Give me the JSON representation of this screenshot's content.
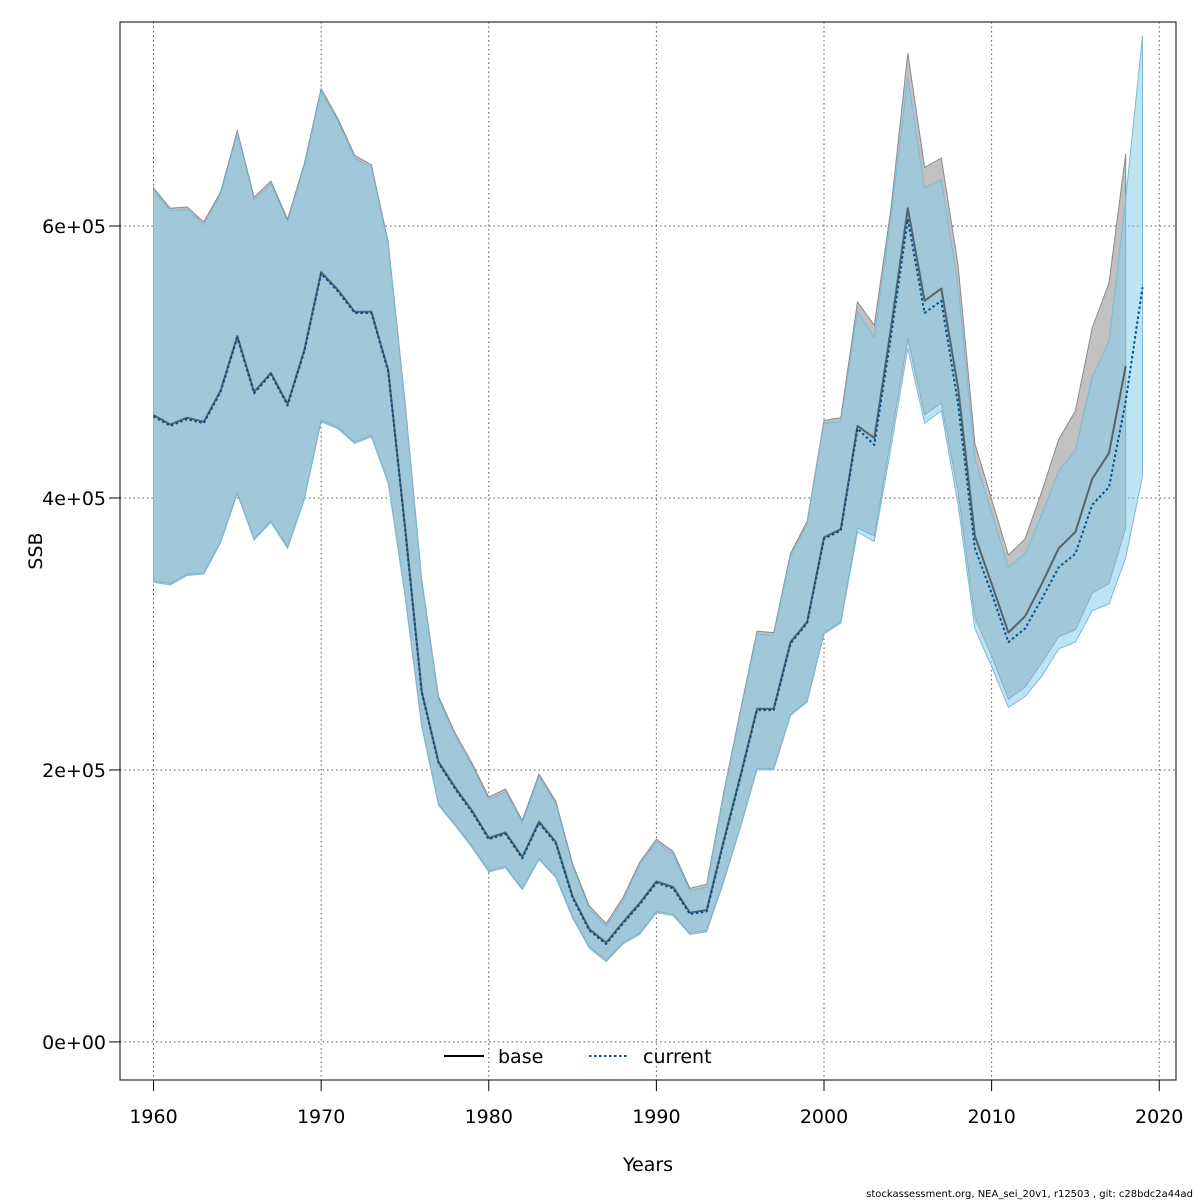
{
  "chart_data": {
    "type": "line",
    "xlabel": "Years",
    "ylabel": "SSB",
    "xlim": [
      1958,
      2021
    ],
    "ylim": [
      -28000,
      750000
    ],
    "x_ticks": [
      1960,
      1970,
      1980,
      1990,
      2000,
      2010,
      2020
    ],
    "y_ticks": [
      0,
      200000,
      400000,
      600000
    ],
    "y_tick_labels": [
      "0e+00",
      "2e+05",
      "4e+05",
      "6e+05"
    ],
    "grid": true,
    "legend_placement": "bottom",
    "footer": "stockassessment.org, NEA_sei_20v1, r12503 , git: c28bdc2a44ad",
    "colors": {
      "base_line": "#000000",
      "base_band": "#bebebe",
      "current_line": "#00508c",
      "current_band": "#87ceeb"
    },
    "series": [
      {
        "name": "base",
        "style": "solid",
        "x": [
          1960,
          1961,
          1962,
          1963,
          1964,
          1965,
          1966,
          1967,
          1968,
          1969,
          1970,
          1971,
          1972,
          1973,
          1974,
          1975,
          1976,
          1977,
          1978,
          1979,
          1980,
          1981,
          1982,
          1983,
          1984,
          1985,
          1986,
          1987,
          1988,
          1989,
          1990,
          1991,
          1992,
          1993,
          1994,
          1995,
          1996,
          1997,
          1998,
          1999,
          2000,
          2001,
          2002,
          2003,
          2004,
          2005,
          2006,
          2007,
          2008,
          2009,
          2010,
          2011,
          2012,
          2013,
          2014,
          2015,
          2016,
          2017,
          2018
        ],
        "values": [
          461000,
          454000,
          459000,
          456000,
          479000,
          519000,
          478000,
          492000,
          469000,
          509000,
          566000,
          553000,
          537000,
          537000,
          494000,
          379000,
          258000,
          206000,
          187000,
          170000,
          150000,
          154000,
          136000,
          162000,
          147000,
          107000,
          83000,
          73000,
          88000,
          102000,
          118000,
          114000,
          95000,
          97000,
          147000,
          195000,
          245000,
          245000,
          294000,
          309000,
          371000,
          377000,
          453000,
          444000,
          525000,
          613000,
          545000,
          554000,
          481000,
          372000,
          337000,
          301000,
          313000,
          337000,
          363000,
          375000,
          414000,
          433000,
          497000
        ],
        "lower": [
          339000,
          337000,
          344000,
          345000,
          368000,
          404000,
          370000,
          383000,
          364000,
          400000,
          457000,
          452000,
          441000,
          446000,
          412000,
          329000,
          233000,
          175000,
          160000,
          144000,
          126000,
          129000,
          113000,
          135000,
          122000,
          92000,
          70000,
          60000,
          73000,
          80000,
          96000,
          94000,
          80000,
          82000,
          118000,
          158000,
          201000,
          201000,
          241000,
          251000,
          301000,
          309000,
          378000,
          372000,
          444000,
          517000,
          461000,
          470000,
          404000,
          312000,
          284000,
          252000,
          261000,
          279000,
          298000,
          303000,
          330000,
          337000,
          378000
        ],
        "upper": [
          628000,
          613000,
          614000,
          603000,
          625000,
          670000,
          621000,
          633000,
          605000,
          646000,
          701000,
          679000,
          652000,
          645000,
          588000,
          471000,
          340000,
          254000,
          227000,
          205000,
          180000,
          186000,
          163000,
          197000,
          177000,
          131000,
          100000,
          87000,
          106000,
          132000,
          149000,
          140000,
          113000,
          116000,
          182000,
          243000,
          302000,
          301000,
          359000,
          383000,
          457000,
          459000,
          544000,
          527000,
          613000,
          727000,
          643000,
          650000,
          571000,
          440000,
          399000,
          358000,
          370000,
          405000,
          443000,
          464000,
          525000,
          558000,
          653000
        ]
      },
      {
        "name": "current",
        "style": "dotted",
        "x": [
          1960,
          1961,
          1962,
          1963,
          1964,
          1965,
          1966,
          1967,
          1968,
          1969,
          1970,
          1971,
          1972,
          1973,
          1974,
          1975,
          1976,
          1977,
          1978,
          1979,
          1980,
          1981,
          1982,
          1983,
          1984,
          1985,
          1986,
          1987,
          1988,
          1989,
          1990,
          1991,
          1992,
          1993,
          1994,
          1995,
          1996,
          1997,
          1998,
          1999,
          2000,
          2001,
          2002,
          2003,
          2004,
          2005,
          2006,
          2007,
          2008,
          2009,
          2010,
          2011,
          2012,
          2013,
          2014,
          2015,
          2016,
          2017,
          2018,
          2019
        ],
        "values": [
          460000,
          453000,
          458000,
          455000,
          478000,
          518000,
          477000,
          491000,
          468000,
          508000,
          565000,
          552000,
          536000,
          536000,
          493000,
          378000,
          257000,
          205000,
          186000,
          169000,
          149000,
          153000,
          135000,
          161000,
          146000,
          106000,
          82000,
          72000,
          87000,
          101000,
          117000,
          113000,
          94000,
          96000,
          146000,
          194000,
          244000,
          244000,
          293000,
          308000,
          370000,
          376000,
          451000,
          439000,
          519000,
          605000,
          536000,
          545000,
          469000,
          363000,
          330000,
          294000,
          304000,
          326000,
          349000,
          359000,
          395000,
          408000,
          471000,
          555000
        ],
        "lower": [
          338000,
          336000,
          343000,
          344000,
          367000,
          403000,
          369000,
          382000,
          363000,
          399000,
          456000,
          451000,
          440000,
          445000,
          411000,
          328000,
          232000,
          174000,
          159000,
          143000,
          125000,
          128000,
          112000,
          134000,
          121000,
          91000,
          69000,
          59000,
          72000,
          79000,
          95000,
          93000,
          79000,
          81000,
          117000,
          157000,
          200000,
          200000,
          240000,
          250000,
          300000,
          308000,
          375000,
          368000,
          437000,
          510000,
          455000,
          464000,
          395000,
          304000,
          276000,
          246000,
          254000,
          269000,
          289000,
          294000,
          317000,
          322000,
          356000,
          416000
        ],
        "upper": [
          626000,
          611000,
          612000,
          601000,
          623000,
          668000,
          619000,
          631000,
          603000,
          644000,
          699000,
          677000,
          650000,
          643000,
          586000,
          469000,
          338000,
          252000,
          225000,
          203000,
          178000,
          184000,
          161000,
          195000,
          175000,
          129000,
          98000,
          85000,
          104000,
          130000,
          147000,
          138000,
          111000,
          114000,
          180000,
          241000,
          300000,
          299000,
          357000,
          381000,
          455000,
          456000,
          537000,
          518000,
          606000,
          709000,
          628000,
          634000,
          556000,
          429000,
          389000,
          349000,
          359000,
          388000,
          420000,
          435000,
          489000,
          515000,
          620000,
          740000
        ]
      }
    ]
  }
}
